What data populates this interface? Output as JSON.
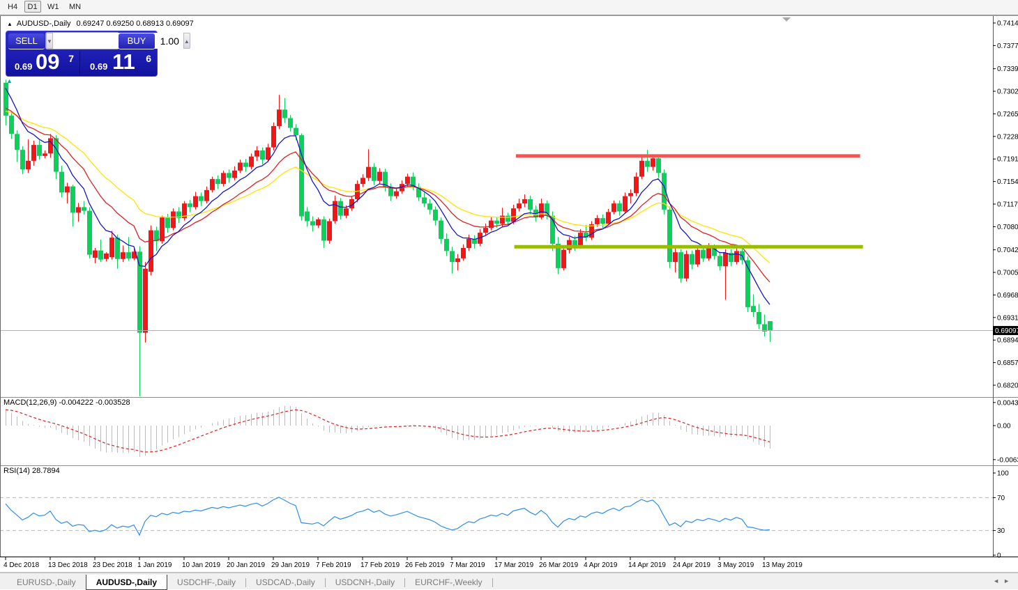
{
  "ui": {
    "toolbar": {
      "timeframes": [
        "H4",
        "D1",
        "W1",
        "MN"
      ],
      "active": "D1"
    },
    "chart_title": {
      "arrow": "▲",
      "symbol": "AUDUSD-,Daily",
      "values": "0.69247 0.69250 0.68913 0.69097"
    },
    "trade_panel": {
      "sell_label": "SELL",
      "buy_label": "BUY",
      "volume": "1.00",
      "spin_down_icon": "▼",
      "spin_up_icon": "▲",
      "sell_price_small": "0.69",
      "sell_price_big": "09",
      "sell_price_sup": "7",
      "buy_price_small": "0.69",
      "buy_price_big": "11",
      "buy_price_sup": "6",
      "quick_arrow_icon": "▲"
    },
    "macd_label": "MACD(12,26,9) -0.004222 -0.003528",
    "rsi_label": "RSI(14) 28.7894",
    "tabs": {
      "items": [
        "EURUSD-,Daily",
        "AUDUSD-,Daily",
        "USDCHF-,Daily",
        "USDCAD-,Daily",
        "USDCNH-,Daily",
        "EURCHF-,Weekly"
      ],
      "active_index": 1,
      "prev_icon": "◄",
      "next_icon": "►"
    }
  },
  "chart_data": {
    "type": "candlestick",
    "symbol": "AUDUSD-,Daily",
    "ohlc_display": {
      "open": "0.69247",
      "high": "0.69250",
      "low": "0.68913",
      "close": "0.69097"
    },
    "current_price": 0.69097,
    "current_price_label": "0.69097",
    "price_axis_labels": [
      "0.74140",
      "0.73770",
      "0.73390",
      "0.73020",
      "0.72650",
      "0.72280",
      "0.71910",
      "0.71540",
      "0.71170",
      "0.70800",
      "0.70420",
      "0.70050",
      "0.69680",
      "0.69310",
      "0.68940",
      "0.68570",
      "0.68200"
    ],
    "date_labels": [
      {
        "i": 0,
        "t": "4 Dec 2018"
      },
      {
        "i": 8,
        "t": "13 Dec 2018"
      },
      {
        "i": 16,
        "t": "23 Dec 2018"
      },
      {
        "i": 24,
        "t": "1 Jan 2019"
      },
      {
        "i": 32,
        "t": "10 Jan 2019"
      },
      {
        "i": 40,
        "t": "20 Jan 2019"
      },
      {
        "i": 48,
        "t": "29 Jan 2019"
      },
      {
        "i": 56,
        "t": "7 Feb 2019"
      },
      {
        "i": 64,
        "t": "17 Feb 2019"
      },
      {
        "i": 72,
        "t": "26 Feb 2019"
      },
      {
        "i": 80,
        "t": "7 Mar 2019"
      },
      {
        "i": 88,
        "t": "17 Mar 2019"
      },
      {
        "i": 96,
        "t": "26 Mar 2019"
      },
      {
        "i": 104,
        "t": "4 Apr 2019"
      },
      {
        "i": 112,
        "t": "14 Apr 2019"
      },
      {
        "i": 120,
        "t": "24 Apr 2019"
      },
      {
        "i": 128,
        "t": "3 May 2019"
      },
      {
        "i": 136,
        "t": "13 May 2019"
      }
    ],
    "colors": {
      "up": "#F21616",
      "down": "#0BD05A"
    },
    "bars": [
      [
        0.7316,
        0.7321,
        0.7246,
        0.7262
      ],
      [
        0.7262,
        0.7268,
        0.7224,
        0.7232
      ],
      [
        0.7232,
        0.7238,
        0.7186,
        0.7206
      ],
      [
        0.7206,
        0.7212,
        0.7166,
        0.7174
      ],
      [
        0.7174,
        0.7223,
        0.7168,
        0.7188
      ],
      [
        0.7188,
        0.7221,
        0.718,
        0.7214
      ],
      [
        0.7214,
        0.7222,
        0.719,
        0.7196
      ],
      [
        0.7196,
        0.7205,
        0.7192,
        0.72
      ],
      [
        0.72,
        0.7232,
        0.7193,
        0.7225
      ],
      [
        0.7225,
        0.723,
        0.7158,
        0.717
      ],
      [
        0.717,
        0.718,
        0.7128,
        0.7136
      ],
      [
        0.7136,
        0.7152,
        0.7118,
        0.7146
      ],
      [
        0.7146,
        0.7149,
        0.708,
        0.7103
      ],
      [
        0.7103,
        0.7119,
        0.7088,
        0.7112
      ],
      [
        0.7112,
        0.7122,
        0.71,
        0.7106
      ],
      [
        0.7106,
        0.7112,
        0.7028,
        0.7034
      ],
      [
        0.7029,
        0.7045,
        0.702,
        0.7041
      ],
      [
        0.7041,
        0.7059,
        0.7022,
        0.7026
      ],
      [
        0.7027,
        0.7038,
        0.7023,
        0.7036
      ],
      [
        0.703,
        0.7073,
        0.7026,
        0.7062
      ],
      [
        0.7062,
        0.7067,
        0.7011,
        0.7027
      ],
      [
        0.7027,
        0.7049,
        0.7022,
        0.7038
      ],
      [
        0.7038,
        0.7063,
        0.7024,
        0.7028
      ],
      [
        0.7028,
        0.7044,
        0.7025,
        0.7039
      ],
      [
        0.7039,
        0.7048,
        0.6741,
        0.6906
      ],
      [
        0.6906,
        0.7022,
        0.689,
        0.7011
      ],
      [
        0.7006,
        0.7082,
        0.7,
        0.7074
      ],
      [
        0.7074,
        0.708,
        0.704,
        0.7056
      ],
      [
        0.7056,
        0.7098,
        0.7052,
        0.7095
      ],
      [
        0.7095,
        0.7101,
        0.707,
        0.7078
      ],
      [
        0.7078,
        0.711,
        0.7074,
        0.7105
      ],
      [
        0.7105,
        0.7112,
        0.7086,
        0.7094
      ],
      [
        0.7094,
        0.7122,
        0.709,
        0.7118
      ],
      [
        0.7118,
        0.7124,
        0.7104,
        0.7112
      ],
      [
        0.7112,
        0.7137,
        0.7108,
        0.713
      ],
      [
        0.713,
        0.7136,
        0.7114,
        0.7122
      ],
      [
        0.7122,
        0.7146,
        0.7118,
        0.714
      ],
      [
        0.714,
        0.7162,
        0.7136,
        0.7158
      ],
      [
        0.7158,
        0.7164,
        0.7142,
        0.715
      ],
      [
        0.715,
        0.7172,
        0.7146,
        0.7168
      ],
      [
        0.7168,
        0.7174,
        0.7152,
        0.716
      ],
      [
        0.716,
        0.7179,
        0.7156,
        0.7172
      ],
      [
        0.7172,
        0.719,
        0.7168,
        0.7185
      ],
      [
        0.7185,
        0.7191,
        0.717,
        0.7178
      ],
      [
        0.7178,
        0.72,
        0.7174,
        0.7195
      ],
      [
        0.7195,
        0.7212,
        0.7188,
        0.7205
      ],
      [
        0.7205,
        0.721,
        0.7182,
        0.719
      ],
      [
        0.719,
        0.7216,
        0.7186,
        0.721
      ],
      [
        0.721,
        0.7251,
        0.7205,
        0.7245
      ],
      [
        0.7245,
        0.7296,
        0.724,
        0.7272
      ],
      [
        0.7272,
        0.7291,
        0.725,
        0.7258
      ],
      [
        0.7258,
        0.7263,
        0.7236,
        0.7242
      ],
      [
        0.7242,
        0.7248,
        0.7222,
        0.723
      ],
      [
        0.723,
        0.7233,
        0.709,
        0.7097
      ],
      [
        0.7105,
        0.7112,
        0.708,
        0.7089
      ],
      [
        0.7089,
        0.7097,
        0.7072,
        0.7082
      ],
      [
        0.7082,
        0.7095,
        0.7078,
        0.7092
      ],
      [
        0.7092,
        0.7097,
        0.7045,
        0.7057
      ],
      [
        0.7057,
        0.7093,
        0.7052,
        0.7089
      ],
      [
        0.7089,
        0.7131,
        0.7085,
        0.7122
      ],
      [
        0.7122,
        0.7127,
        0.7092,
        0.7098
      ],
      [
        0.7098,
        0.7115,
        0.7094,
        0.711
      ],
      [
        0.711,
        0.7129,
        0.7106,
        0.7125
      ],
      [
        0.7125,
        0.7156,
        0.712,
        0.715
      ],
      [
        0.715,
        0.7166,
        0.7145,
        0.716
      ],
      [
        0.716,
        0.7207,
        0.7155,
        0.7178
      ],
      [
        0.7178,
        0.7184,
        0.7148,
        0.7155
      ],
      [
        0.7155,
        0.7176,
        0.715,
        0.717
      ],
      [
        0.717,
        0.7175,
        0.7138,
        0.7145
      ],
      [
        0.7145,
        0.7151,
        0.7122,
        0.713
      ],
      [
        0.713,
        0.7143,
        0.7126,
        0.7138
      ],
      [
        0.7138,
        0.7156,
        0.7134,
        0.715
      ],
      [
        0.715,
        0.7167,
        0.7146,
        0.7162
      ],
      [
        0.7162,
        0.7169,
        0.714,
        0.7145
      ],
      [
        0.7145,
        0.7151,
        0.7122,
        0.7128
      ],
      [
        0.7128,
        0.7136,
        0.7112,
        0.7118
      ],
      [
        0.7118,
        0.7125,
        0.71,
        0.7108
      ],
      [
        0.7108,
        0.7113,
        0.7082,
        0.709
      ],
      [
        0.709,
        0.7095,
        0.7052,
        0.706
      ],
      [
        0.706,
        0.7069,
        0.7032,
        0.704
      ],
      [
        0.704,
        0.7047,
        0.7003,
        0.7022
      ],
      [
        0.7022,
        0.7035,
        0.7008,
        0.7028
      ],
      [
        0.7028,
        0.7051,
        0.7024,
        0.7045
      ],
      [
        0.7045,
        0.7067,
        0.704,
        0.706
      ],
      [
        0.706,
        0.7066,
        0.7044,
        0.7052
      ],
      [
        0.7052,
        0.7076,
        0.7048,
        0.707
      ],
      [
        0.707,
        0.7085,
        0.7066,
        0.7078
      ],
      [
        0.7078,
        0.7096,
        0.7074,
        0.709
      ],
      [
        0.709,
        0.7095,
        0.7078,
        0.7085
      ],
      [
        0.7085,
        0.7111,
        0.708,
        0.7098
      ],
      [
        0.7098,
        0.7103,
        0.7082,
        0.7088
      ],
      [
        0.7088,
        0.7116,
        0.7084,
        0.711
      ],
      [
        0.711,
        0.7126,
        0.7105,
        0.7118
      ],
      [
        0.7118,
        0.7133,
        0.7112,
        0.7125
      ],
      [
        0.7125,
        0.7131,
        0.71,
        0.7108
      ],
      [
        0.7108,
        0.7115,
        0.7088,
        0.7095
      ],
      [
        0.7095,
        0.7126,
        0.7092,
        0.7118
      ],
      [
        0.7118,
        0.7123,
        0.7092,
        0.7098
      ],
      [
        0.7098,
        0.7105,
        0.704,
        0.7052
      ],
      [
        0.7052,
        0.7063,
        0.7002,
        0.7012
      ],
      [
        0.7012,
        0.7049,
        0.7008,
        0.7042
      ],
      [
        0.7042,
        0.7063,
        0.7036,
        0.7058
      ],
      [
        0.7058,
        0.7065,
        0.704,
        0.7048
      ],
      [
        0.7048,
        0.7076,
        0.7044,
        0.707
      ],
      [
        0.707,
        0.7083,
        0.7056,
        0.7062
      ],
      [
        0.7062,
        0.7089,
        0.7058,
        0.7084
      ],
      [
        0.7084,
        0.7099,
        0.708,
        0.7094
      ],
      [
        0.7094,
        0.71,
        0.7078,
        0.7085
      ],
      [
        0.7085,
        0.7109,
        0.7082,
        0.7104
      ],
      [
        0.7104,
        0.7123,
        0.71,
        0.7118
      ],
      [
        0.7118,
        0.7123,
        0.7098,
        0.7105
      ],
      [
        0.7105,
        0.7136,
        0.7102,
        0.713
      ],
      [
        0.713,
        0.7141,
        0.7118,
        0.7135
      ],
      [
        0.7135,
        0.7169,
        0.713,
        0.7162
      ],
      [
        0.7162,
        0.7194,
        0.7158,
        0.7188
      ],
      [
        0.7188,
        0.7206,
        0.717,
        0.7178
      ],
      [
        0.7178,
        0.7197,
        0.7172,
        0.7192
      ],
      [
        0.7192,
        0.7197,
        0.716,
        0.7168
      ],
      [
        0.7168,
        0.7174,
        0.71,
        0.7108
      ],
      [
        0.7108,
        0.7113,
        0.7012,
        0.7022
      ],
      [
        0.7022,
        0.7046,
        0.7005,
        0.7038
      ],
      [
        0.7038,
        0.7043,
        0.6988,
        0.6995
      ],
      [
        0.6995,
        0.7041,
        0.699,
        0.7035
      ],
      [
        0.7035,
        0.7041,
        0.701,
        0.7018
      ],
      [
        0.7018,
        0.7049,
        0.7014,
        0.7042
      ],
      [
        0.7042,
        0.7048,
        0.7022,
        0.7028
      ],
      [
        0.7028,
        0.7053,
        0.7024,
        0.7045
      ],
      [
        0.7045,
        0.7051,
        0.7026,
        0.7032
      ],
      [
        0.7032,
        0.7039,
        0.7008,
        0.7015
      ],
      [
        0.7015,
        0.7043,
        0.696,
        0.7037
      ],
      [
        0.7037,
        0.7043,
        0.7015,
        0.7022
      ],
      [
        0.7022,
        0.7046,
        0.7018,
        0.704
      ],
      [
        0.704,
        0.7045,
        0.7018,
        0.7025
      ],
      [
        0.7025,
        0.7031,
        0.694,
        0.6948
      ],
      [
        0.695,
        0.6969,
        0.6932,
        0.694
      ],
      [
        0.694,
        0.6953,
        0.6912,
        0.692
      ],
      [
        0.692,
        0.6936,
        0.69,
        0.6908
      ],
      [
        0.6925,
        0.6925,
        0.6891,
        0.691
      ]
    ],
    "moving_averages": [
      {
        "name": "ma-slow",
        "period": 28,
        "seed": 0.727,
        "color": "#FFE400"
      },
      {
        "name": "ma-medium",
        "period": 16,
        "seed": 0.7276,
        "color": "#DD2020"
      },
      {
        "name": "ma-fast",
        "period": 8,
        "seed": 0.732,
        "color": "#1414CC"
      }
    ],
    "trendlines": [
      {
        "name": "resistance-line",
        "price": 0.7196,
        "i1": 91.5,
        "i2": 153.2,
        "color": "#FA5252",
        "width": 5
      },
      {
        "name": "support-line",
        "price": 0.7047,
        "i1": 91.2,
        "i2": 153.7,
        "color": "#97BC00",
        "width": 5
      }
    ],
    "macd": {
      "fast": 12,
      "slow": 26,
      "signal": 9,
      "fast_seed": 0.7282,
      "slow_seed": 0.7248,
      "axis_labels": [
        "0.004331",
        "0.00",
        "-0.006373"
      ],
      "hist_color": "#BDBDBD",
      "signal_color": "#E02020"
    },
    "rsi": {
      "period": 14,
      "seed_gain": 0.001,
      "seed_loss": 0.0006,
      "levels": [
        70,
        30
      ],
      "axis_labels": [
        "100",
        "70",
        "30",
        "0"
      ],
      "color": "#2E8DEF"
    }
  }
}
